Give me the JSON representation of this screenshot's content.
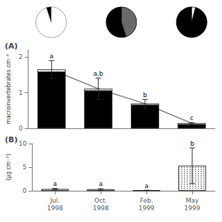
{
  "chart_data": [
    {
      "type": "pie",
      "values": [
        0.05,
        0.95
      ],
      "colors": [
        "black",
        "white"
      ],
      "line_style": "dotted"
    },
    {
      "type": "pie",
      "values": [
        0.55,
        0.45
      ],
      "colors": [
        "black",
        "dimgray"
      ]
    },
    {
      "type": "pie",
      "values": [
        0.96,
        0.04
      ],
      "colors": [
        "black",
        "white"
      ]
    },
    {
      "type": "bar",
      "title": "(A)",
      "categories": [
        null,
        null,
        null,
        null
      ],
      "stacked": true,
      "series": [
        {
          "type": "bar",
          "color": "black",
          "values": [
            1.58,
            1.05,
            0.65,
            0.1
          ]
        },
        {
          "type": "bar",
          "color": "white",
          "values": [
            0.07,
            0.06,
            0.04,
            0.04
          ]
        },
        {
          "type": "line",
          "color": "gray",
          "values": [
            1.65,
            1.11,
            0.69,
            0.14
          ]
        }
      ],
      "errors": [
        0.25,
        0.3,
        0.12,
        0.02
      ],
      "annotations": [
        "a",
        "a,b",
        "b",
        "c"
      ],
      "ylabel": "macroinvertebrates cm⁻²",
      "ylim": [
        0,
        2.2
      ],
      "yticks": [
        0,
        1,
        2
      ],
      "grid": false,
      "tick_labels": "y"
    },
    {
      "type": "bar",
      "title": "(B)",
      "categories": [
        "Jul.\n1998",
        "Oct.\n1998",
        "Feb.\n1999",
        "May\n1999"
      ],
      "values": [
        0.35,
        0.3,
        0.08,
        5.3
      ],
      "color": "white",
      "errors": [
        0.15,
        0.15,
        0.05,
        3.8
      ],
      "annotations": [
        "a",
        "a",
        "a",
        "b"
      ],
      "ylabel": "(µg cm⁻²)",
      "ylim": [
        0,
        10
      ],
      "yticks": [
        0,
        5,
        10
      ],
      "grid": false
    }
  ]
}
